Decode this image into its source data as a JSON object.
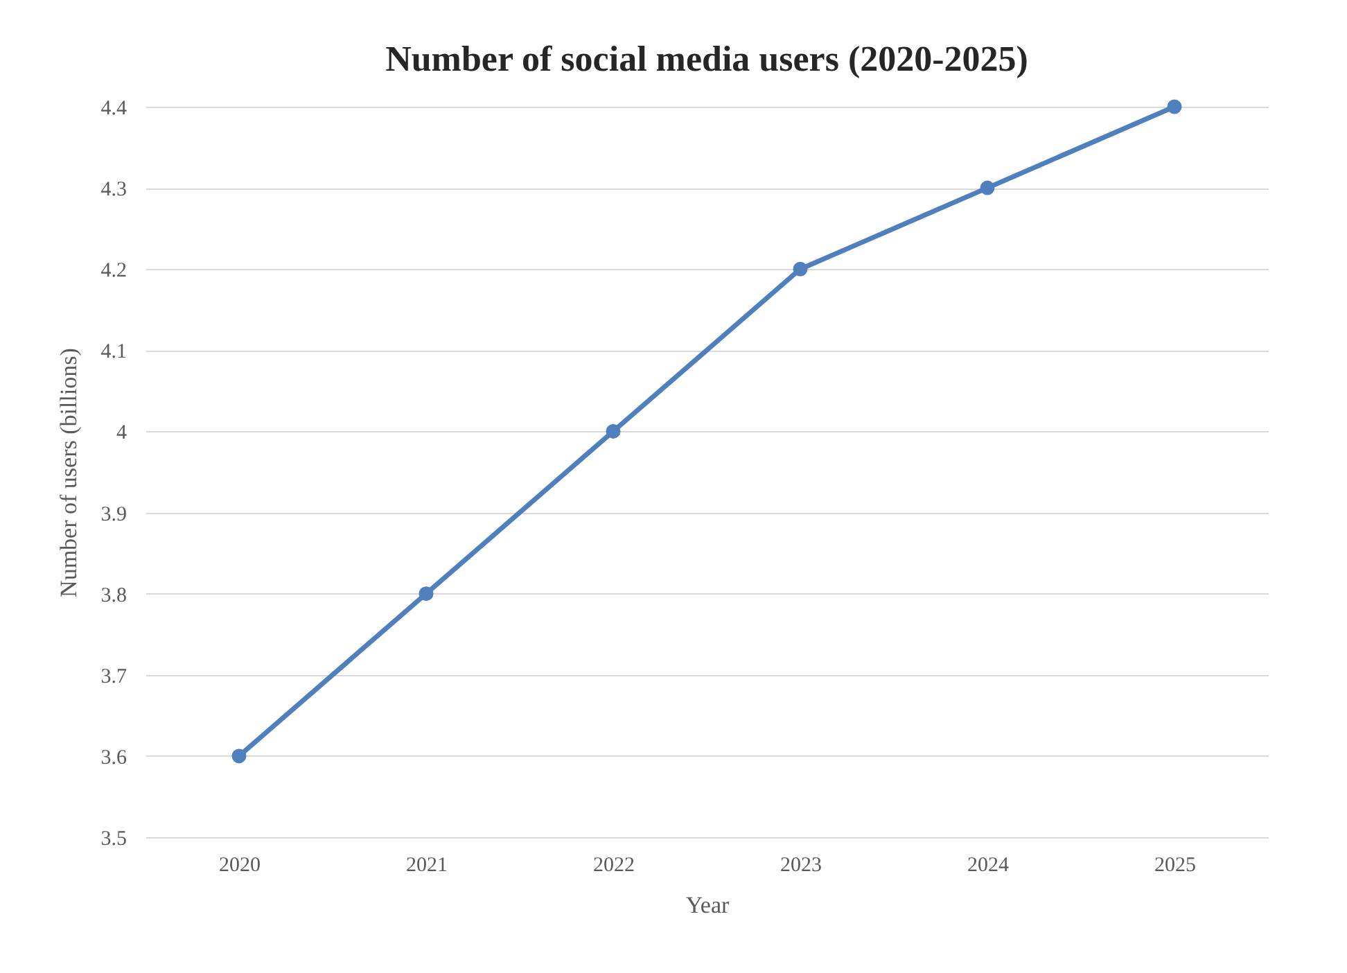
{
  "chart_data": {
    "type": "line",
    "title": "Number of social media users (2020-2025)",
    "xlabel": "Year",
    "ylabel": "Number of users (billions)",
    "categories": [
      "2020",
      "2021",
      "2022",
      "2023",
      "2024",
      "2025"
    ],
    "series": [
      {
        "color": "#4f7fbd",
        "values": [
          3.6,
          3.8,
          4.0,
          4.2,
          4.3,
          4.4
        ]
      }
    ],
    "ylim": [
      3.5,
      4.4
    ],
    "yticks": [
      3.5,
      3.6,
      3.7,
      3.8,
      3.9,
      4,
      4.1,
      4.2,
      4.3,
      4.4
    ],
    "grid": "y",
    "marker": "circle",
    "line_style": "solid"
  }
}
